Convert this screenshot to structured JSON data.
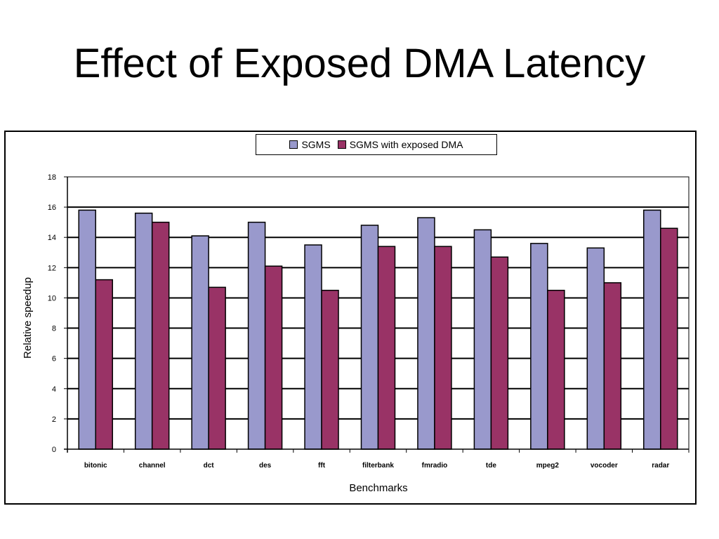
{
  "slide": {
    "title": "Effect of Exposed DMA Latency"
  },
  "chart_data": {
    "type": "bar",
    "xlabel": "Benchmarks",
    "ylabel": "Relative speedup",
    "ylim": [
      0,
      18
    ],
    "yticks": [
      0,
      2,
      4,
      6,
      8,
      10,
      12,
      14,
      16,
      18
    ],
    "grid": true,
    "legend_position": "top-center",
    "categories": [
      "bitonic",
      "channel",
      "dct",
      "des",
      "fft",
      "filterbank",
      "fmradio",
      "tde",
      "mpeg2",
      "vocoder",
      "radar"
    ],
    "series": [
      {
        "name": "SGMS",
        "color": "#9999cc",
        "values": [
          15.8,
          15.6,
          14.1,
          15.0,
          13.5,
          14.8,
          15.3,
          14.5,
          13.6,
          13.3,
          15.8
        ]
      },
      {
        "name": "SGMS with exposed DMA",
        "color": "#993366",
        "values": [
          11.2,
          15.0,
          10.7,
          12.1,
          10.5,
          13.4,
          13.4,
          12.7,
          10.5,
          11.0,
          14.6
        ]
      }
    ]
  }
}
